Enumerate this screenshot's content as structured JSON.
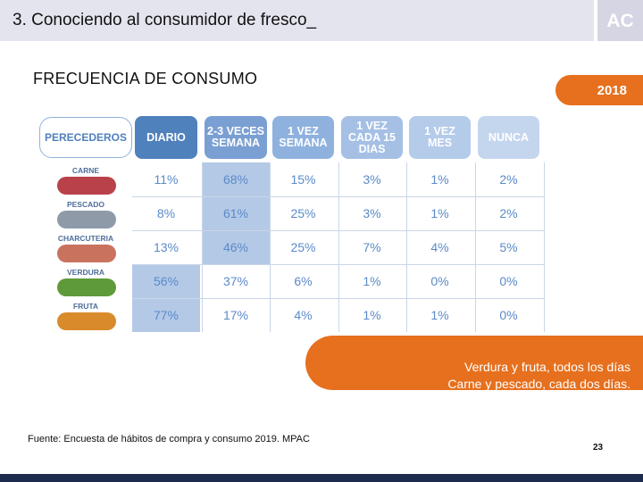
{
  "header": {
    "title": "3. Conociendo al consumidor de fresco_",
    "logo": "AC"
  },
  "section_title": "FRECUENCIA DE CONSUMO",
  "year": "2018",
  "table": {
    "category_header": "PERECEDEROS",
    "columns": [
      {
        "label": "DIARIO",
        "color": "#4f81bd"
      },
      {
        "label": "2-3 VECES\nSEMANA",
        "color": "#7a9fd2"
      },
      {
        "label": "1 VEZ\nSEMANA",
        "color": "#8fb1de"
      },
      {
        "label": "1 VEZ\nCADA 15\nDIAS",
        "color": "#a5c0e4"
      },
      {
        "label": "1 VEZ\nMES",
        "color": "#b4cbea"
      },
      {
        "label": "NUNCA",
        "color": "#c4d6ee"
      }
    ],
    "rows": [
      {
        "label": "CARNE",
        "food_color": "#b8414a",
        "values": [
          "11%",
          "68%",
          "15%",
          "3%",
          "1%",
          "2%"
        ]
      },
      {
        "label": "PESCADO",
        "food_color": "#8e9aa8",
        "values": [
          "8%",
          "61%",
          "25%",
          "3%",
          "1%",
          "2%"
        ]
      },
      {
        "label": "CHARCUTERIA",
        "food_color": "#c9735f",
        "values": [
          "13%",
          "46%",
          "25%",
          "7%",
          "4%",
          "5%"
        ]
      },
      {
        "label": "VERDURA",
        "food_color": "#5f9a3a",
        "values": [
          "56%",
          "37%",
          "6%",
          "1%",
          "0%",
          "0%"
        ]
      },
      {
        "label": "FRUTA",
        "food_color": "#d98b2b",
        "values": [
          "77%",
          "17%",
          "4%",
          "1%",
          "1%",
          "0%"
        ]
      }
    ]
  },
  "note": {
    "line1": "Verdura y fruta, todos los días",
    "line2": "Carne y pescado, cada dos días."
  },
  "source": "Fuente: Encuesta de hábitos de compra y consumo 2019. MPAC",
  "page_number": "23"
}
